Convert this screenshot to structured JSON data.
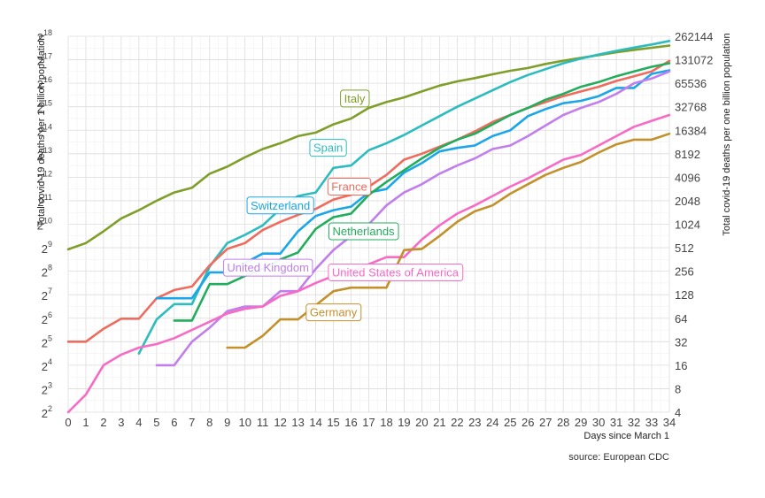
{
  "chart_data": {
    "type": "line",
    "title": "",
    "xlabel": "Days since March 1",
    "ylabel_left": "Total covid-19 deaths per 1 billion population",
    "ylabel_right": "Total covid-19 deaths per one billion population",
    "source": "source: European CDC",
    "xlim": [
      0,
      34
    ],
    "ylim_log2": [
      2,
      18
    ],
    "y_scale": "log2",
    "grid": true,
    "x_ticks": [
      "0",
      "1",
      "2",
      "3",
      "4",
      "5",
      "6",
      "7",
      "8",
      "9",
      "10",
      "11",
      "12",
      "13",
      "14",
      "15",
      "16",
      "17",
      "18",
      "19",
      "20",
      "21",
      "22",
      "23",
      "24",
      "25",
      "26",
      "27",
      "28",
      "29",
      "30",
      "31",
      "32",
      "33",
      "34"
    ],
    "y_ticks_left": [
      {
        "base": "2",
        "exp": "2"
      },
      {
        "base": "2",
        "exp": "3"
      },
      {
        "base": "2",
        "exp": "4"
      },
      {
        "base": "2",
        "exp": "5"
      },
      {
        "base": "2",
        "exp": "6"
      },
      {
        "base": "2",
        "exp": "7"
      },
      {
        "base": "2",
        "exp": "8"
      },
      {
        "base": "2",
        "exp": "9"
      },
      {
        "base": "2",
        "exp": "10"
      },
      {
        "base": "2",
        "exp": "11"
      },
      {
        "base": "2",
        "exp": "12"
      },
      {
        "base": "2",
        "exp": "13"
      },
      {
        "base": "2",
        "exp": "14"
      },
      {
        "base": "2",
        "exp": "15"
      },
      {
        "base": "2",
        "exp": "16"
      },
      {
        "base": "2",
        "exp": "17"
      },
      {
        "base": "2",
        "exp": "18"
      }
    ],
    "y_ticks_right": [
      "4",
      "8",
      "16",
      "32",
      "64",
      "128",
      "256",
      "512",
      "1024",
      "2048",
      "4096",
      "8192",
      "16384",
      "32768",
      "65536",
      "131072",
      "262144"
    ],
    "series": [
      {
        "name": "Italy",
        "color": "#7f9e2a",
        "label_x": 16.2,
        "label_y": 15.35,
        "x": [
          0,
          1,
          2,
          3,
          4,
          5,
          6,
          7,
          8,
          9,
          10,
          11,
          12,
          13,
          14,
          15,
          16,
          17,
          18,
          19,
          20,
          21,
          22,
          23,
          24,
          25,
          26,
          27,
          28,
          29,
          30,
          31,
          32,
          33,
          34
        ],
        "y": [
          8.93,
          9.2,
          9.7,
          10.25,
          10.6,
          11.0,
          11.35,
          11.55,
          12.15,
          12.45,
          12.85,
          13.2,
          13.45,
          13.75,
          13.9,
          14.25,
          14.5,
          14.95,
          15.2,
          15.4,
          15.65,
          15.9,
          16.08,
          16.22,
          16.38,
          16.53,
          16.65,
          16.82,
          16.96,
          17.08,
          17.2,
          17.32,
          17.42,
          17.51,
          17.6
        ]
      },
      {
        "name": "Spain",
        "color": "#2cbcbf",
        "label_x": 14.7,
        "label_y": 13.25,
        "x": [
          4,
          5,
          6,
          7,
          8,
          9,
          10,
          11,
          12,
          13,
          14,
          15,
          16,
          17,
          18,
          19,
          20,
          21,
          22,
          23,
          24,
          25,
          26,
          27,
          28,
          29,
          30,
          31,
          32,
          33,
          34
        ],
        "y": [
          4.5,
          5.95,
          6.6,
          6.6,
          8.2,
          9.2,
          9.55,
          9.95,
          10.65,
          11.2,
          11.35,
          12.4,
          12.5,
          13.15,
          13.45,
          13.8,
          14.2,
          14.6,
          15.0,
          15.35,
          15.7,
          16.05,
          16.35,
          16.6,
          16.85,
          17.05,
          17.22,
          17.38,
          17.52,
          17.65,
          17.8
        ]
      },
      {
        "name": "France",
        "color": "#ee6b5e",
        "label_x": 15.9,
        "label_y": 11.6,
        "x": [
          0,
          1,
          2,
          3,
          4,
          5,
          6,
          7,
          8,
          9,
          10,
          11,
          12,
          13,
          14,
          15,
          16,
          17,
          18,
          19,
          20,
          21,
          22,
          23,
          24,
          25,
          26,
          27,
          28,
          29,
          30,
          31,
          32,
          33,
          34
        ],
        "y": [
          5.0,
          5.0,
          5.55,
          5.98,
          5.98,
          6.85,
          7.2,
          7.35,
          8.25,
          8.95,
          9.2,
          9.75,
          10.1,
          10.4,
          10.65,
          11.05,
          11.25,
          11.6,
          12.1,
          12.75,
          13.0,
          13.3,
          13.6,
          13.95,
          14.35,
          14.65,
          14.95,
          15.2,
          15.45,
          15.65,
          15.85,
          16.1,
          16.3,
          16.5,
          16.95
        ]
      },
      {
        "name": "Switzerland",
        "color": "#1aa6e8",
        "label_x": 12.0,
        "label_y": 10.8,
        "x": [
          5,
          6,
          7,
          8,
          9,
          10,
          11,
          12,
          13,
          14,
          15,
          16,
          17,
          18,
          19,
          20,
          21,
          22,
          23,
          24,
          25,
          26,
          27,
          28,
          29,
          30,
          31,
          32,
          33,
          34
        ],
        "y": [
          6.85,
          6.85,
          6.85,
          7.95,
          7.95,
          8.35,
          8.75,
          8.75,
          9.7,
          10.35,
          10.6,
          10.75,
          11.35,
          11.5,
          12.2,
          12.6,
          13.1,
          13.25,
          13.35,
          13.75,
          14.0,
          14.6,
          14.9,
          15.15,
          15.25,
          15.45,
          15.8,
          15.8,
          16.4,
          16.55
        ]
      },
      {
        "name": "Netherlands",
        "color": "#22ad5c",
        "label_x": 16.7,
        "label_y": 9.7,
        "x": [
          6,
          7,
          8,
          9,
          10,
          11,
          12,
          13,
          14,
          15,
          16,
          17,
          18,
          19,
          20,
          21,
          22,
          23,
          24,
          25,
          26,
          27,
          28,
          29,
          30,
          31,
          32,
          33,
          34
        ],
        "y": [
          5.9,
          5.9,
          7.45,
          7.45,
          7.8,
          8.1,
          8.5,
          8.8,
          9.8,
          10.3,
          10.45,
          11.25,
          11.8,
          12.3,
          12.8,
          13.25,
          13.6,
          13.85,
          14.25,
          14.65,
          14.95,
          15.3,
          15.55,
          15.85,
          16.05,
          16.3,
          16.5,
          16.7,
          16.85
        ]
      },
      {
        "name": "United Kingdom",
        "color": "#c17fec",
        "label_x": 11.3,
        "label_y": 8.15,
        "x": [
          5,
          6,
          7,
          8,
          9,
          10,
          11,
          12,
          13,
          14,
          15,
          16,
          17,
          18,
          19,
          20,
          21,
          22,
          23,
          24,
          25,
          26,
          27,
          28,
          29,
          30,
          31,
          32,
          33,
          34
        ],
        "y": [
          4.0,
          4.0,
          5.0,
          5.6,
          6.3,
          6.5,
          6.5,
          7.15,
          7.15,
          8.1,
          8.9,
          9.5,
          10.0,
          10.8,
          11.35,
          11.7,
          12.15,
          12.5,
          12.8,
          13.2,
          13.35,
          13.75,
          14.2,
          14.65,
          14.95,
          15.2,
          15.55,
          16.0,
          16.2,
          16.5
        ]
      },
      {
        "name": "United States of America",
        "color": "#f76bc5",
        "label_x": 18.5,
        "label_y": 7.95,
        "x": [
          0,
          1,
          2,
          3,
          4,
          5,
          6,
          7,
          8,
          9,
          10,
          11,
          12,
          13,
          14,
          15,
          16,
          17,
          18,
          19,
          20,
          21,
          22,
          23,
          24,
          25,
          26,
          27,
          28,
          29,
          30,
          31,
          32,
          33,
          34
        ],
        "y": [
          2.0,
          2.75,
          4.0,
          4.45,
          4.75,
          4.9,
          5.15,
          5.5,
          5.85,
          6.2,
          6.4,
          6.5,
          6.95,
          7.15,
          7.5,
          7.8,
          8.0,
          8.3,
          8.6,
          8.6,
          9.35,
          9.95,
          10.45,
          10.8,
          11.2,
          11.6,
          11.95,
          12.35,
          12.75,
          12.95,
          13.35,
          13.75,
          14.15,
          14.4,
          14.65
        ]
      },
      {
        "name": "Germany",
        "color": "#c2912b",
        "label_x": 15.0,
        "label_y": 6.25,
        "x": [
          9,
          10,
          11,
          12,
          13,
          14,
          15,
          16,
          17,
          18,
          19,
          20,
          21,
          22,
          23,
          24,
          25,
          26,
          27,
          28,
          29,
          30,
          31,
          32,
          33,
          34
        ],
        "y": [
          4.75,
          4.75,
          5.25,
          5.95,
          5.95,
          6.55,
          7.15,
          7.3,
          7.3,
          7.3,
          8.9,
          8.95,
          9.5,
          10.1,
          10.55,
          10.8,
          11.3,
          11.7,
          12.1,
          12.4,
          12.65,
          13.05,
          13.4,
          13.6,
          13.6,
          13.85
        ]
      }
    ]
  }
}
